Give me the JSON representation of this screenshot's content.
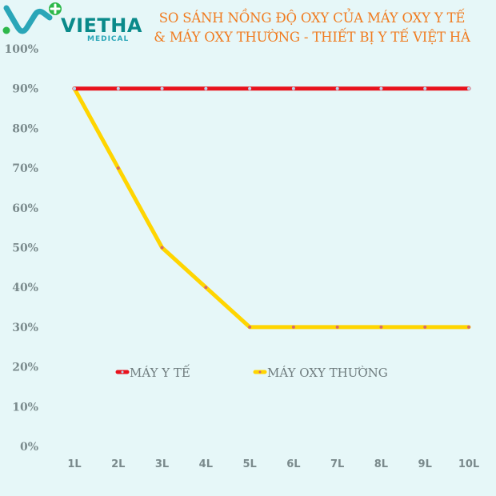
{
  "brand": {
    "name": "VIETHA",
    "subname": "MEDICAL"
  },
  "colors": {
    "background": "#e6f7f8",
    "title": "#f07b1f",
    "brand_teal": "#0a8a8a",
    "brand_green": "#2db84a",
    "series_1": "#e8121c",
    "series_2": "#ffd500"
  },
  "chart_data": {
    "type": "line",
    "title": "SO SÁNH NỒNG ĐỘ OXY CỦA MÁY OXY Y TẾ",
    "subtitle": "& MÁY OXY THƯỜNG - THIẾT BỊ Y TẾ VIỆT HÀ",
    "categories": [
      "1L",
      "2L",
      "3L",
      "4L",
      "5L",
      "6L",
      "7L",
      "8L",
      "9L",
      "10L"
    ],
    "yticks": [
      "0%",
      "10%",
      "20%",
      "30%",
      "40%",
      "50%",
      "60%",
      "70%",
      "80%",
      "90%",
      "100%"
    ],
    "ylim": [
      0,
      100
    ],
    "ytick_step": 10,
    "grid": false,
    "legend": "center",
    "series": [
      {
        "name": "MÁY Y TẾ",
        "color": "#e8121c",
        "values": [
          90,
          90,
          90,
          90,
          90,
          90,
          90,
          90,
          90,
          90
        ]
      },
      {
        "name": "MÁY OXY THƯỜNG",
        "color": "#ffd500",
        "values": [
          90,
          70,
          50,
          40,
          30,
          30,
          30,
          30,
          30,
          30
        ]
      }
    ]
  }
}
